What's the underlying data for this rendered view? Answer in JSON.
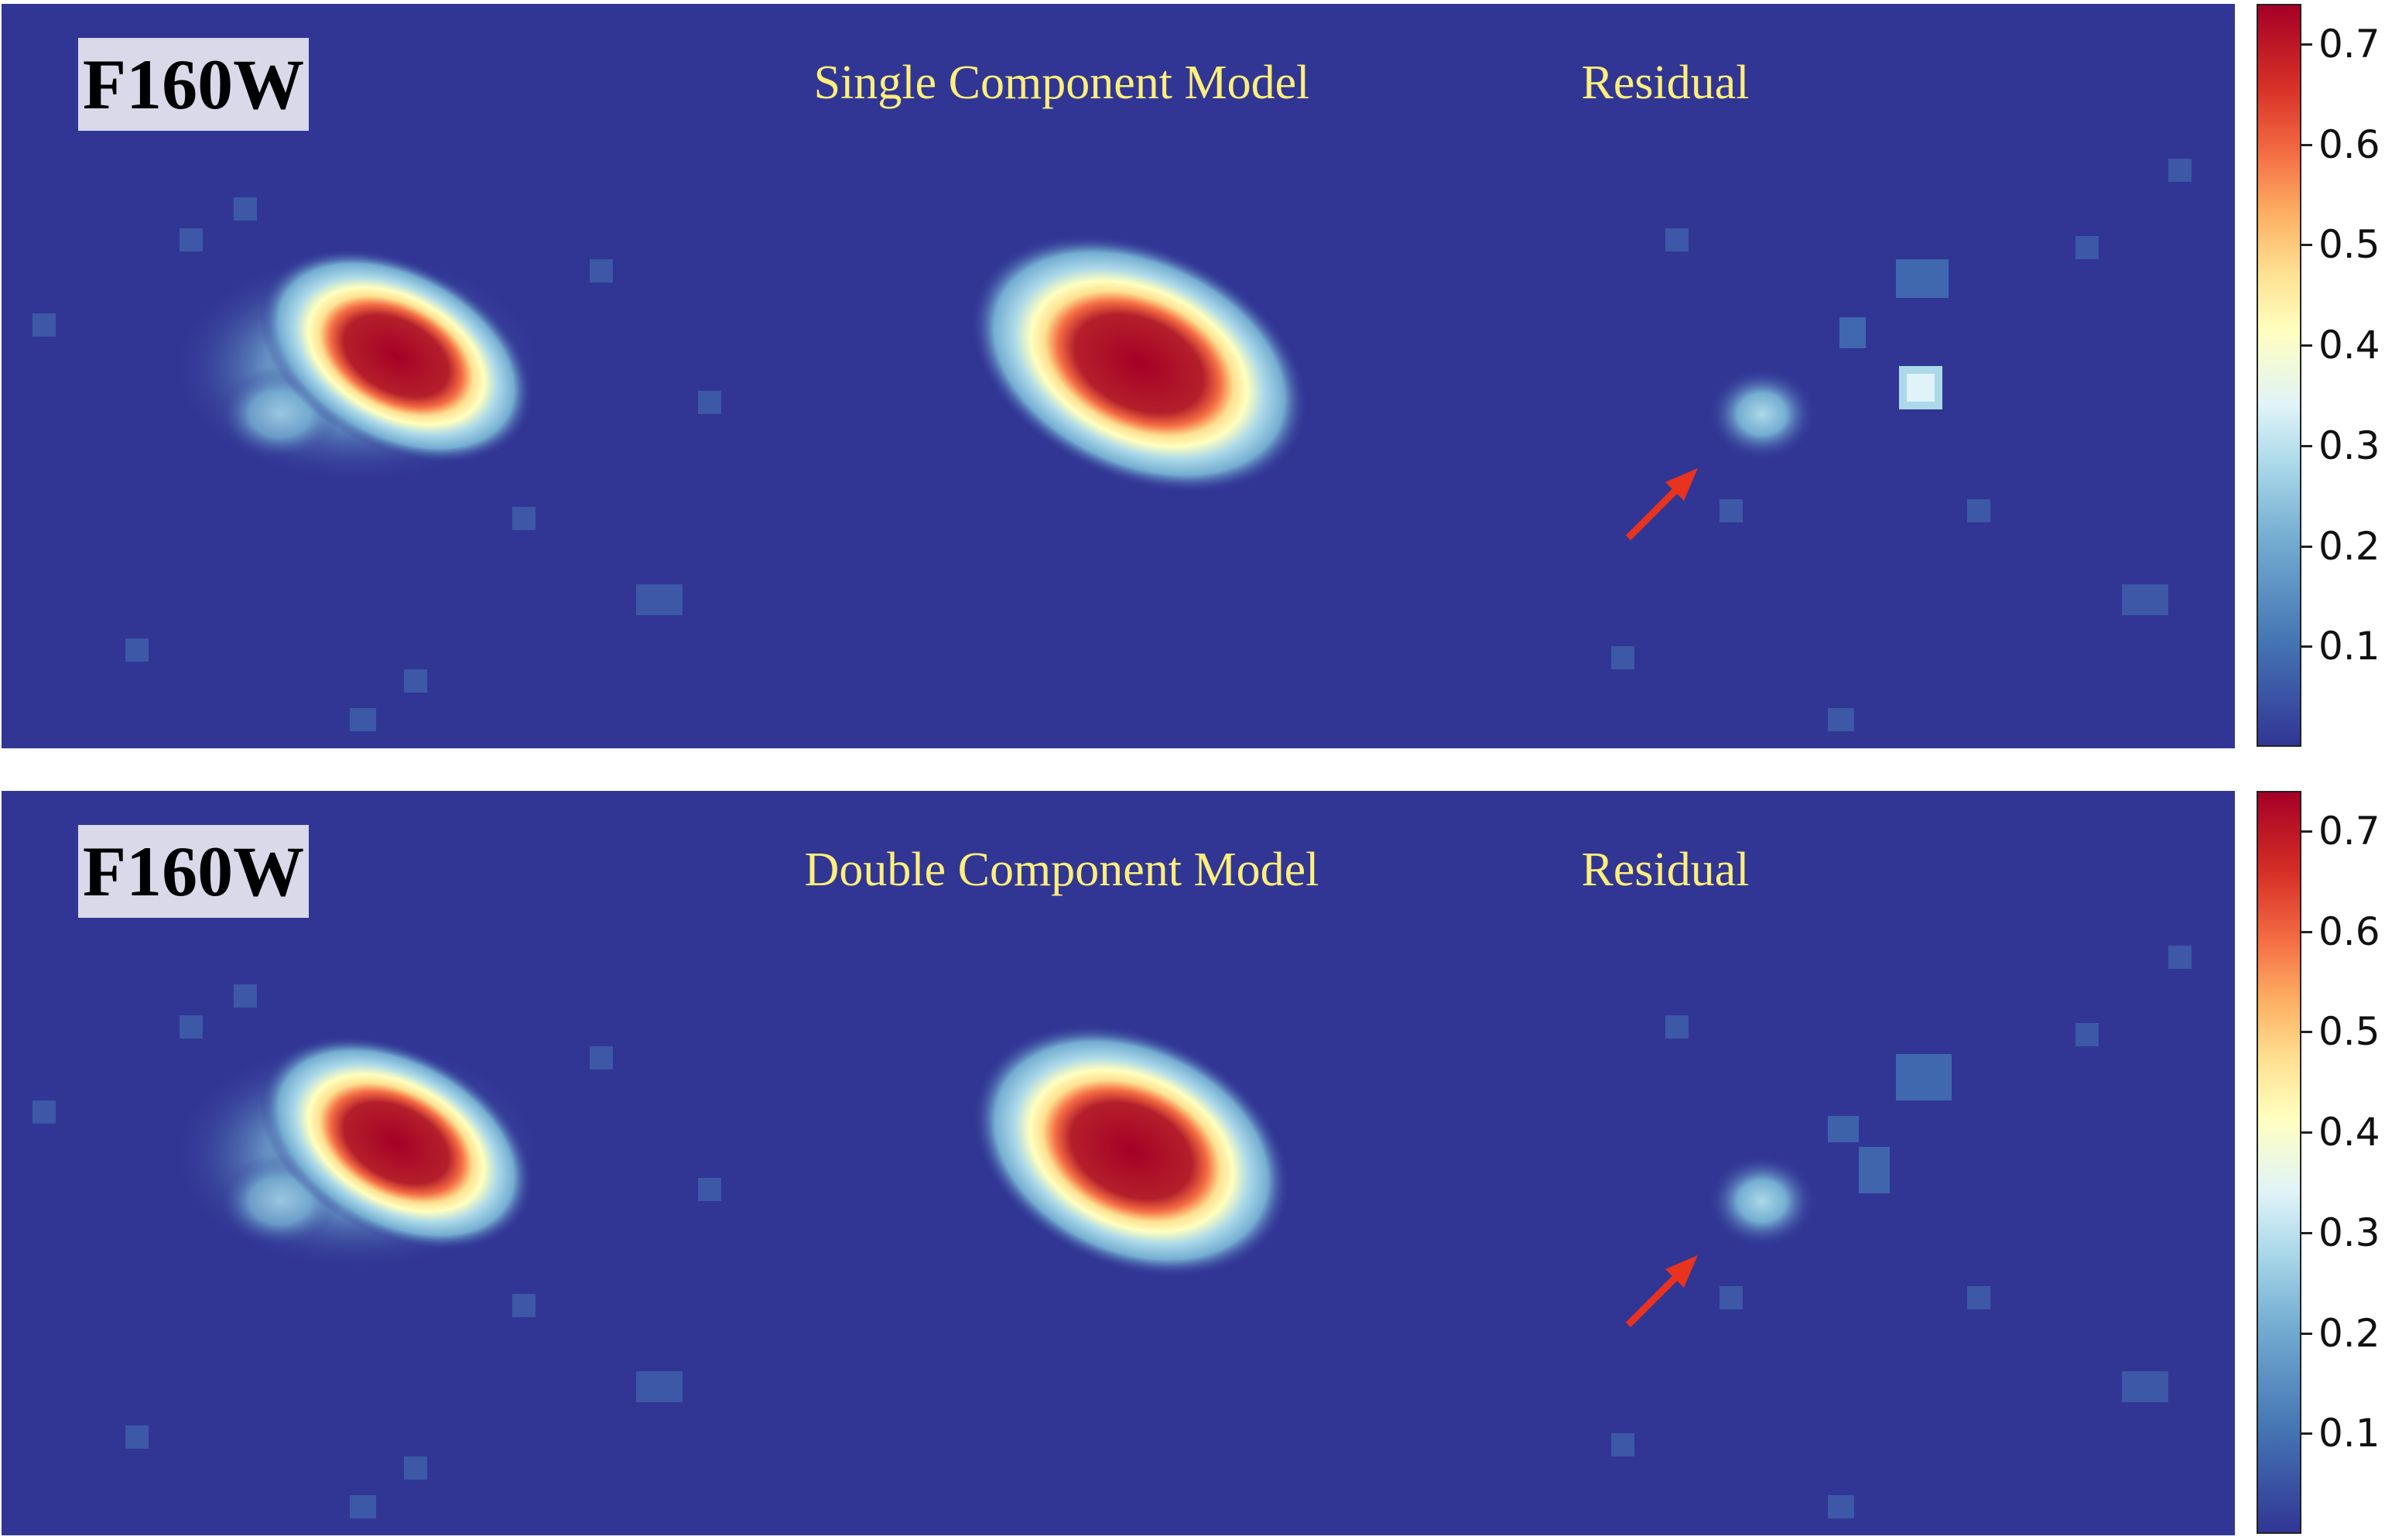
{
  "panels": [
    {
      "filter": "F160W",
      "model_title": "Single Component Model",
      "residual_title": "Residual",
      "colorbar_ticks": [
        "0.1",
        "0.2",
        "0.3",
        "0.4",
        "0.5",
        "0.6",
        "0.7"
      ]
    },
    {
      "filter": "F160W",
      "model_title": "Double Component Model",
      "residual_title": "Residual",
      "colorbar_ticks": [
        "0.1",
        "0.2",
        "0.3",
        "0.4",
        "0.5",
        "0.6",
        "0.7"
      ]
    }
  ],
  "colormap": {
    "low": "#313695",
    "high": "#a50026",
    "annotation_arrow": "#e8331f"
  }
}
